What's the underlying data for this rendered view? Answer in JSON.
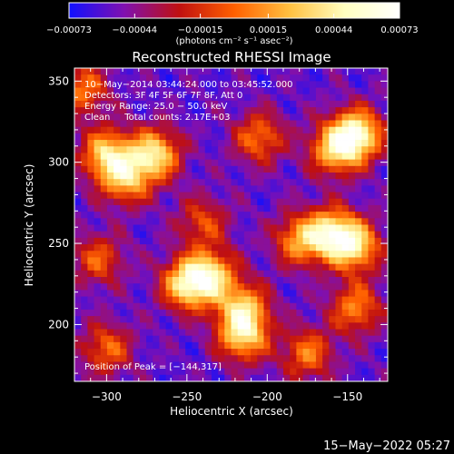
{
  "chart_data": {
    "type": "heatmap",
    "title": "Reconstructed RHESSI Image",
    "xlabel": "Heliocentric X (arcsec)",
    "ylabel": "Heliocentric Y (arcsec)",
    "xlim": [
      -320,
      -125
    ],
    "ylim": [
      165,
      358
    ],
    "x_ticks": [
      -300,
      -250,
      -200,
      -150
    ],
    "y_ticks": [
      200,
      250,
      300,
      350
    ],
    "x_tick_labels": [
      "−300",
      "−250",
      "−200",
      "−150"
    ],
    "y_tick_labels": [
      "200",
      "250",
      "300",
      "350"
    ],
    "colorbar": {
      "range": [
        -0.00073,
        0.00073
      ],
      "ticks": [
        -0.00073,
        -0.00044,
        -0.00015,
        0.00015,
        0.00044,
        0.00073
      ],
      "tick_labels": [
        "−0.00073",
        "−0.00044",
        "−0.00015",
        "0.00015",
        "0.00044",
        "0.00073"
      ],
      "unit_label": "(photons cm⁻² s⁻¹ asec⁻²)",
      "colors": [
        "#1010ff",
        "#8010b0",
        "#c01010",
        "#ff6000",
        "#ffc040",
        "#ffffc0",
        "#ffffff"
      ]
    },
    "annotations": [
      "10−May−2014 03:44:24.000 to 03:45:52.000",
      "Detectors: 3F 4F 5F 6F 7F 8F, Att 0",
      "Energy Range: 25.0 − 50.0 keV",
      "Clean     Total counts: 2.17E+03"
    ],
    "peak_label": "Position of Peak = [−144,317]",
    "peak": [
      -144,
      317
    ],
    "sources": [
      {
        "x": -300,
        "y": 305,
        "amp": 1.0
      },
      {
        "x": -270,
        "y": 305,
        "amp": 1.1
      },
      {
        "x": -288,
        "y": 290,
        "amp": 0.9
      },
      {
        "x": -250,
        "y": 225,
        "amp": 1.1
      },
      {
        "x": -235,
        "y": 230,
        "amp": 1.0
      },
      {
        "x": -215,
        "y": 210,
        "amp": 0.9
      },
      {
        "x": -215,
        "y": 193,
        "amp": 1.0
      },
      {
        "x": -144,
        "y": 317,
        "amp": 1.25
      },
      {
        "x": -158,
        "y": 308,
        "amp": 0.95
      },
      {
        "x": -160,
        "y": 256,
        "amp": 1.1
      },
      {
        "x": -145,
        "y": 248,
        "amp": 1.0
      },
      {
        "x": -180,
        "y": 252,
        "amp": 0.8
      },
      {
        "x": -315,
        "y": 345,
        "amp": 0.7
      },
      {
        "x": -305,
        "y": 240,
        "amp": 0.6
      },
      {
        "x": -300,
        "y": 185,
        "amp": 0.65
      },
      {
        "x": -205,
        "y": 315,
        "amp": 0.7
      },
      {
        "x": -145,
        "y": 210,
        "amp": 0.75
      },
      {
        "x": -175,
        "y": 182,
        "amp": 0.7
      },
      {
        "x": -240,
        "y": 263,
        "amp": 0.55
      }
    ],
    "grid": false
  },
  "timestamp": "15−May−2022 05:27"
}
